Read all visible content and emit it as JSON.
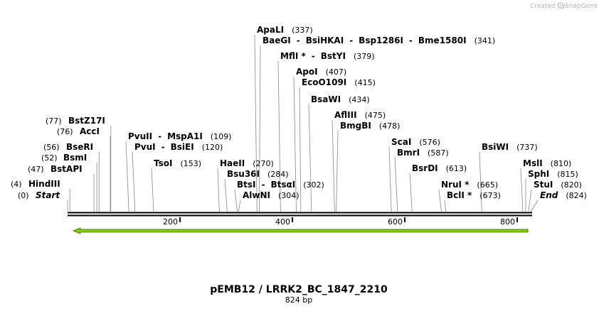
{
  "credit": {
    "created_by": "Created by",
    "brand": "SnapGene"
  },
  "sequence": {
    "name": "pEMB12 / LRRK2_BC_1847_2210",
    "length_label": "824 bp",
    "length": 824
  },
  "axis_ticks": [
    {
      "label": "200",
      "value": 200
    },
    {
      "label": "400",
      "value": 400
    },
    {
      "label": "600",
      "value": 600
    },
    {
      "label": "800",
      "value": 800
    }
  ],
  "feature": {
    "name": "arrow-feature",
    "direction": "reverse",
    "start": 1,
    "end": 824,
    "color": "#7fd000"
  },
  "sites": [
    {
      "id": "start",
      "names": [
        "Start"
      ],
      "positions": [
        "(0)"
      ],
      "position": 0,
      "italic": true
    },
    {
      "id": "hindiii",
      "names": [
        "HindIII"
      ],
      "positions": [
        "(4)"
      ],
      "position": 4
    },
    {
      "id": "bstapi",
      "names": [
        "BstAPI"
      ],
      "positions": [
        "(47)"
      ],
      "position": 47
    },
    {
      "id": "bsmi",
      "names": [
        "BsmI"
      ],
      "positions": [
        "(52)"
      ],
      "position": 52
    },
    {
      "id": "bseri",
      "names": [
        "BseRI"
      ],
      "positions": [
        "(56)"
      ],
      "position": 56
    },
    {
      "id": "acci",
      "names": [
        "AccI"
      ],
      "positions": [
        "(76)"
      ],
      "position": 76
    },
    {
      "id": "bstz17i",
      "names": [
        "BstZ17I"
      ],
      "positions": [
        "(77)"
      ],
      "position": 77
    },
    {
      "id": "pvuii-mspa1i",
      "names": [
        "PvuII",
        "-",
        "MspA1I"
      ],
      "positions": [
        "(109)"
      ],
      "position": 109
    },
    {
      "id": "pvui-bsiei",
      "names": [
        "PvuI",
        "-",
        "BsiEI"
      ],
      "positions": [
        "(120)"
      ],
      "position": 120
    },
    {
      "id": "tsoi",
      "names": [
        "TsoI"
      ],
      "positions": [
        "(153)"
      ],
      "position": 153
    },
    {
      "id": "haeii",
      "names": [
        "HaeII"
      ],
      "positions": [
        "(270)"
      ],
      "position": 270
    },
    {
      "id": "bsu36i",
      "names": [
        "Bsu36I"
      ],
      "positions": [
        "(284)"
      ],
      "position": 284
    },
    {
      "id": "btsi-btsgi",
      "names": [
        "BtsI",
        "-",
        "BtsαI"
      ],
      "positions": [
        "(302)"
      ],
      "position": 302
    },
    {
      "id": "alwni",
      "names": [
        "AlwNI"
      ],
      "positions": [
        "(304)"
      ],
      "position": 304
    },
    {
      "id": "apali",
      "names": [
        "ApaLI"
      ],
      "positions": [
        "(337)"
      ],
      "position": 337
    },
    {
      "id": "baegi-group",
      "names": [
        "BaeGI",
        "-",
        "BsiHKAI",
        "-",
        "Bsp1286I",
        "-",
        "Bme1580I"
      ],
      "positions": [
        "(341)"
      ],
      "position": 341
    },
    {
      "id": "mfli-bstyi",
      "names": [
        "MflI *",
        "-",
        "BstYI"
      ],
      "positions": [
        "(379)"
      ],
      "position": 379
    },
    {
      "id": "apoi",
      "names": [
        "ApoI"
      ],
      "positions": [
        "(407)"
      ],
      "position": 407
    },
    {
      "id": "ecoo109i",
      "names": [
        "EcoO109I"
      ],
      "positions": [
        "(415)"
      ],
      "position": 415
    },
    {
      "id": "bsawi",
      "names": [
        "BsaWI"
      ],
      "positions": [
        "(434)"
      ],
      "position": 434
    },
    {
      "id": "afliii",
      "names": [
        "AflIII"
      ],
      "positions": [
        "(475)"
      ],
      "position": 475
    },
    {
      "id": "bmgbi",
      "names": [
        "BmgBI"
      ],
      "positions": [
        "(478)"
      ],
      "position": 478
    },
    {
      "id": "scai",
      "names": [
        "ScaI"
      ],
      "positions": [
        "(576)"
      ],
      "position": 576
    },
    {
      "id": "bmri",
      "names": [
        "BmrI"
      ],
      "positions": [
        "(587)"
      ],
      "position": 587
    },
    {
      "id": "bsrdi",
      "names": [
        "BsrDI"
      ],
      "positions": [
        "(613)"
      ],
      "position": 613
    },
    {
      "id": "nrui",
      "names": [
        "NruI *"
      ],
      "positions": [
        "(665)"
      ],
      "position": 665
    },
    {
      "id": "bcli",
      "names": [
        "BclI *"
      ],
      "positions": [
        "(673)"
      ],
      "position": 673
    },
    {
      "id": "bsiwi",
      "names": [
        "BsiWI"
      ],
      "positions": [
        "(737)"
      ],
      "position": 737
    },
    {
      "id": "msli",
      "names": [
        "MslI"
      ],
      "positions": [
        "(810)"
      ],
      "position": 810
    },
    {
      "id": "sphi",
      "names": [
        "SphI"
      ],
      "positions": [
        "(815)"
      ],
      "position": 815
    },
    {
      "id": "stui",
      "names": [
        "StuI"
      ],
      "positions": [
        "(820)"
      ],
      "position": 820
    },
    {
      "id": "end",
      "names": [
        "End"
      ],
      "positions": [
        "(824)"
      ],
      "position": 824,
      "italic": true
    }
  ]
}
